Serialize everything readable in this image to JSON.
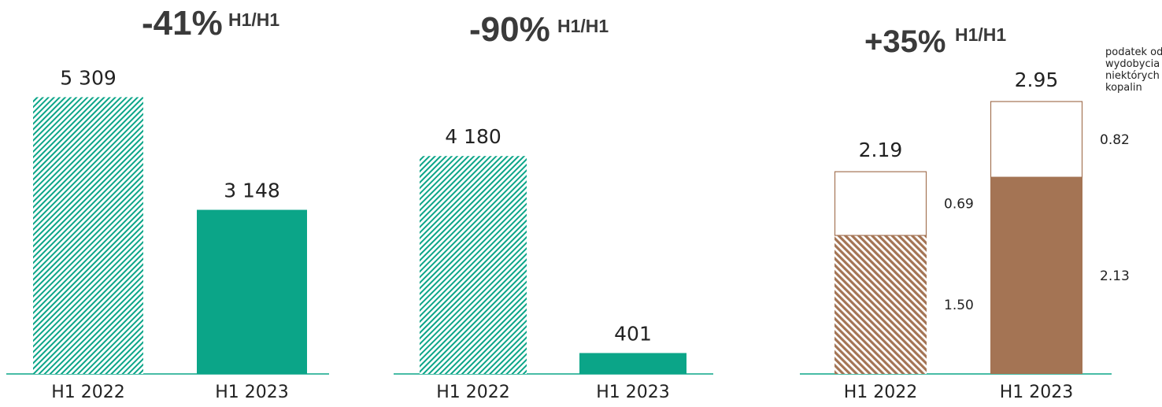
{
  "colors": {
    "green": "#0ba588",
    "brown": "#a47454",
    "axis": "#0ba588"
  },
  "chart_data": [
    {
      "type": "bar",
      "categories": [
        "H1 2022",
        "H1 2023"
      ],
      "values": [
        5309,
        3148
      ],
      "value_labels": [
        "5 309",
        "3 148"
      ],
      "change_pct": "-41%",
      "change_suffix": "H1/H1",
      "ylim": [
        0,
        5800
      ]
    },
    {
      "type": "bar",
      "categories": [
        "H1 2022",
        "H1 2023"
      ],
      "values": [
        4180,
        401
      ],
      "value_labels": [
        "4 180",
        "401"
      ],
      "change_pct": "-90%",
      "change_suffix": "H1/H1",
      "ylim": [
        0,
        5800
      ]
    },
    {
      "type": "bar",
      "stacked": true,
      "categories": [
        "H1 2022",
        "H1 2023"
      ],
      "series": [
        {
          "values": [
            1.5,
            2.13
          ],
          "labels": [
            "1.50",
            "2.13"
          ]
        },
        {
          "name": "podatek od wydobycia niektórych kopalin",
          "values": [
            0.69,
            0.82
          ],
          "labels": [
            "0.69",
            "0.82"
          ]
        }
      ],
      "total_labels": [
        "2.19",
        "2.95"
      ],
      "change_pct": "+35%",
      "change_suffix": "H1/H1",
      "ylim": [
        0,
        3.2
      ]
    }
  ]
}
